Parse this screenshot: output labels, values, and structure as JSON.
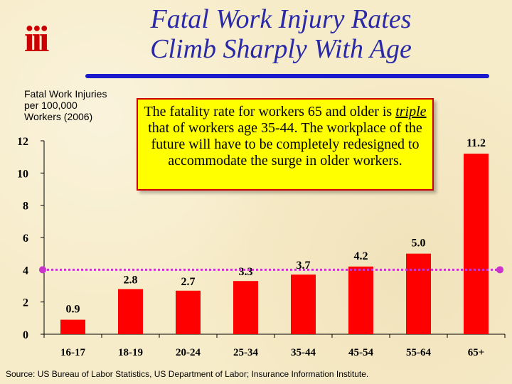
{
  "logo": {
    "text": "iii"
  },
  "header": {
    "title_line1": "Fatal Work Injury Rates",
    "title_line2": "Climb Sharply With Age"
  },
  "y_axis_label": {
    "line1": "Fatal Work Injuries",
    "line2": "per 100,000",
    "line3": "Workers (2006)"
  },
  "callout": {
    "part1": "The fatality rate for workers 65 and older is ",
    "emphasis": "triple",
    "part2": " that of workers age 35-44.  The workplace of the future will have to be completely redesigned to accommodate the surge in older workers."
  },
  "source": "Source: US Bureau of Labor Statistics, US Department of Labor; Insurance Information Institute.",
  "colors": {
    "bar": "#ff0000",
    "reference_line": "#cc33cc",
    "title": "#2a2aa8",
    "callout_bg": "#ffff00",
    "callout_border": "#cc0000"
  },
  "chart_data": {
    "type": "bar",
    "categories": [
      "16-17",
      "18-19",
      "20-24",
      "25-34",
      "35-44",
      "45-54",
      "55-64",
      "65+"
    ],
    "values": [
      0.9,
      2.8,
      2.7,
      3.3,
      3.7,
      4.2,
      5.0,
      11.2
    ],
    "value_labels": [
      "0.9",
      "2.8",
      "2.7",
      "3.3",
      "3.7",
      "4.2",
      "5.0",
      "11.2"
    ],
    "ylim": [
      0,
      12
    ],
    "yticks": [
      0,
      2,
      4,
      6,
      8,
      10,
      12
    ],
    "reference_line": {
      "y": 4.0,
      "style": "dotted",
      "endpoints": "circle"
    },
    "grid": false
  }
}
